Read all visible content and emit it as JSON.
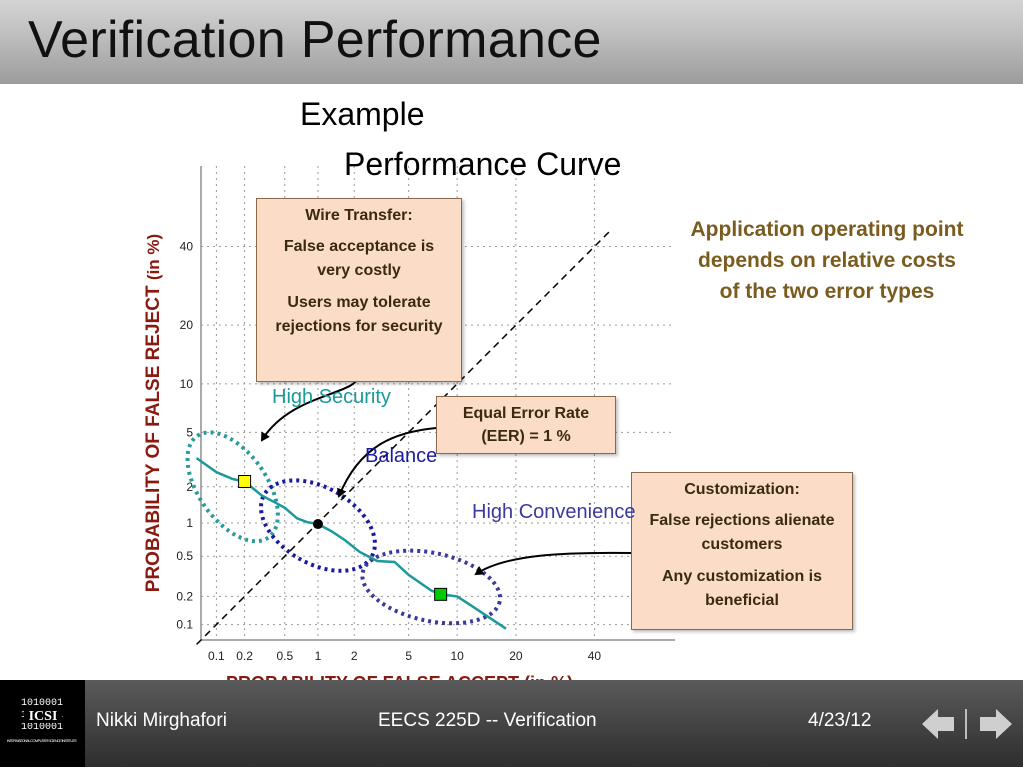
{
  "slide": {
    "title": "Verification Performance",
    "chart_title_line1": "Example",
    "chart_title_line2": "Performance Curve",
    "side_note": "Application operating point depends on relative costs of the two error types"
  },
  "callouts": {
    "wire": {
      "title": "Wire Transfer:",
      "line1": "False acceptance is very costly",
      "line2": "Users may tolerate rejections for security"
    },
    "eer": {
      "text": "Equal Error Rate (EER) = 1 %"
    },
    "custom": {
      "title": "Customization:",
      "line1": "False rejections alienate customers",
      "line2": "Any customization is beneficial"
    }
  },
  "regions": {
    "high_security": "High Security",
    "balance": "Balance",
    "high_convenience": "High Convenience"
  },
  "chart_data": {
    "type": "line",
    "xlabel": "PROBABILITY OF FALSE ACCEPT (in %)",
    "ylabel": "PROBABILITY OF FALSE REJECT",
    "ylabel_unit": "(in %)",
    "x_ticks": [
      "0.1",
      "0.2",
      "0.5",
      "1",
      "2",
      "5",
      "10",
      "20",
      "40"
    ],
    "y_ticks": [
      "0.1",
      "0.2",
      "0.5",
      "1",
      "2",
      "5",
      "10",
      "20",
      "40"
    ],
    "scale": "normal-deviate",
    "grid": true,
    "series": [
      {
        "x": [
          0.06,
          0.1,
          0.15,
          0.2,
          0.3,
          0.4,
          0.5,
          0.65,
          0.8,
          1.0,
          1.3,
          1.7,
          2.2,
          3.0,
          4.0,
          5.0,
          7.0,
          8.0,
          10,
          12,
          14,
          18
        ],
        "y": [
          3.3,
          2.6,
          2.3,
          2.2,
          1.7,
          1.5,
          1.35,
          1.1,
          1.02,
          0.98,
          0.85,
          0.7,
          0.55,
          0.45,
          0.44,
          0.33,
          0.23,
          0.21,
          0.2,
          0.16,
          0.13,
          0.09
        ]
      }
    ],
    "eer_line": {
      "from": [
        0.06,
        0.06
      ],
      "to": [
        45,
        45
      ]
    },
    "operating_points": [
      {
        "x": 0.2,
        "y": 2.2,
        "color": "#ffff00"
      },
      {
        "x": 1.0,
        "y": 0.98,
        "color": "#000000"
      },
      {
        "x": 8.0,
        "y": 0.21,
        "color": "#00cc00"
      }
    ],
    "region_ellipses": [
      {
        "cx": 0.15,
        "cy": 2.0,
        "color": "#2a9a9a"
      },
      {
        "cx": 1.0,
        "cy": 0.95,
        "color": "#1a1aa0"
      },
      {
        "cx": 7.0,
        "cy": 0.25,
        "color": "#3a3a9a"
      }
    ],
    "colors": {
      "curve": "#1a9a9a",
      "grid": "#9a9a9a"
    }
  },
  "footer": {
    "author": "Nikki Mirghafori",
    "course": "EECS 225D -- Verification",
    "date": "4/23/12",
    "logo_text": "ICSI",
    "logo_sub": "INTERNATIONAL COMPUTER SCIENCE INSTITUTE"
  }
}
